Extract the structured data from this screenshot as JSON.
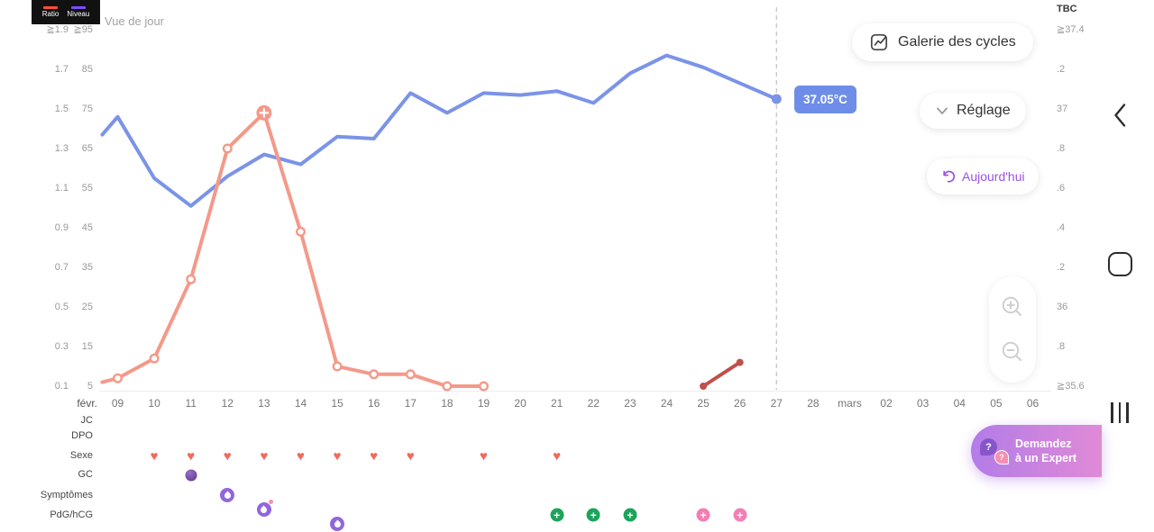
{
  "view": {
    "label": "Vue de jour"
  },
  "legend": {
    "title_items": [
      {
        "label": "Ratio",
        "color": "#ff4d3d"
      },
      {
        "label": "Niveau",
        "color": "#7c4dff"
      }
    ]
  },
  "toolbar": {
    "gallery_label": "Galerie des cycles",
    "settings_label": "Réglage",
    "today_label": "Aujourd'hui"
  },
  "tooltip": {
    "value": "37.05°C"
  },
  "expert_button": {
    "line1": "Demandez",
    "line2": "à un Expert"
  },
  "axes": {
    "right_label": "TBC",
    "left_ratio_ticks": [
      "≧1.9",
      "1.7",
      "1.5",
      "1.3",
      "1.1",
      "0.9",
      "0.7",
      "0.5",
      "0.3",
      "0.1"
    ],
    "left_niveau_ticks": [
      "≧95",
      "85",
      "75",
      "65",
      "55",
      "45",
      "35",
      "25",
      "15",
      "5"
    ],
    "right_tbc_ticks": [
      "≧37.4",
      ".2",
      "37",
      ".8",
      ".6",
      ".4",
      ".2",
      "36",
      ".8",
      "≧35.6"
    ],
    "x_month_label": "févr."
  },
  "row_labels": {
    "jc": "JC",
    "dpo": "DPO",
    "sexe": "Sexe",
    "gc": "GC",
    "symptomes": "Symptômes",
    "pdg_hcg": "PdG/hCG"
  },
  "colors": {
    "heart": "#f2695c",
    "plus_green": "#1ca45c",
    "plus_pink": "#f27fb2",
    "symptom": "#9166dd",
    "accent_purple": "#9b51e0",
    "tooltip_bg": "#6d8de8",
    "today_line": "#c9c9c9"
  },
  "chart_data": {
    "type": "line",
    "x_labels": [
      "09",
      "10",
      "11",
      "12",
      "13",
      "14",
      "15",
      "16",
      "17",
      "18",
      "19",
      "20",
      "21",
      "22",
      "23",
      "24",
      "25",
      "26",
      "27",
      "28",
      "mars",
      "02",
      "03",
      "04",
      "05",
      "06"
    ],
    "today_label": "27",
    "tbc_axis_range": [
      35.6,
      37.4
    ],
    "niveau_axis_range": [
      5,
      95
    ],
    "legend_position": "top-left",
    "grid": false,
    "series": [
      {
        "name": "TBC (°C)",
        "color": "#7b93e8",
        "axis": "tbc",
        "start_day": "09",
        "marker": "last-dot",
        "lead_in": 36.87,
        "values": [
          36.96,
          36.65,
          36.51,
          36.66,
          36.77,
          36.72,
          36.86,
          36.85,
          37.08,
          36.98,
          37.08,
          37.07,
          37.09,
          37.03,
          37.18,
          37.27,
          37.21,
          37.13,
          37.05
        ]
      },
      {
        "name": "Niveau",
        "color": "#f4998a",
        "axis": "niveau",
        "start_day": "09",
        "marker": "open",
        "peak_day": "13",
        "lead_in": 6,
        "values": [
          7,
          12,
          32,
          65,
          74,
          44,
          10,
          8,
          8,
          5,
          5
        ]
      },
      {
        "name": "Niveau 2",
        "color": "#c14f4a",
        "axis": "niveau",
        "start_day": "25",
        "marker": "dot",
        "values": [
          5,
          11
        ]
      }
    ],
    "events": {
      "sexe_days": [
        "10",
        "11",
        "12",
        "13",
        "14",
        "15",
        "16",
        "17",
        "19",
        "21"
      ],
      "gc_days": [
        "11"
      ],
      "symptom_days": [
        {
          "day": "12"
        },
        {
          "day": "13",
          "badge": true
        },
        {
          "day": "15"
        }
      ],
      "pdg_days": [
        {
          "day": "21",
          "color": "green"
        },
        {
          "day": "22",
          "color": "green"
        },
        {
          "day": "23",
          "color": "green"
        },
        {
          "day": "25",
          "color": "pink"
        },
        {
          "day": "26",
          "color": "pink"
        }
      ]
    }
  }
}
